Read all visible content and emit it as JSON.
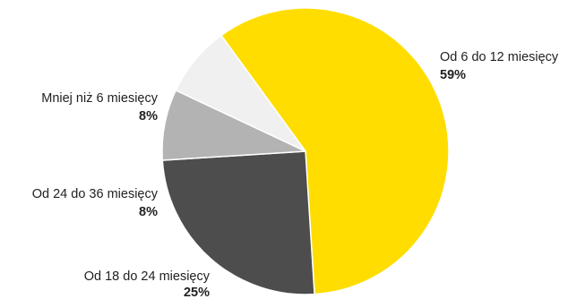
{
  "chart_data": {
    "type": "pie",
    "slices": [
      {
        "label": "Od 6 do 12 miesięcy",
        "value": 59,
        "value_label": "59%",
        "color": "#FFDD00"
      },
      {
        "label": "Od 18 do 24 miesięcy",
        "value": 25,
        "value_label": "25%",
        "color": "#4D4D4D"
      },
      {
        "label": "Od 24 do 36 miesięcy",
        "value": 8,
        "value_label": "8%",
        "color": "#B3B3B3"
      },
      {
        "label": "Mniej niż 6 miesięcy",
        "value": 8,
        "value_label": "8%",
        "color": "#F0F0F0"
      }
    ],
    "start_angle_deg": -36,
    "direction": "clockwise"
  }
}
